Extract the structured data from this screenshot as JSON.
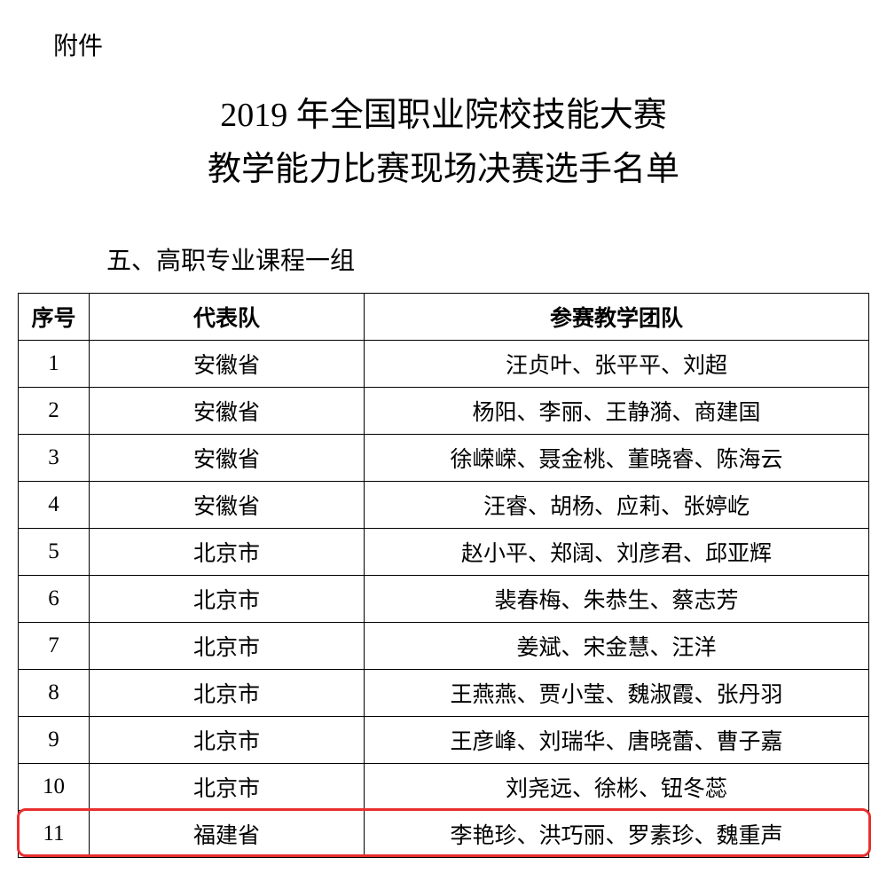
{
  "attachment_label": "附件",
  "title_line_1": "2019 年全国职业院校技能大赛",
  "title_line_2": "教学能力比赛现场决赛选手名单",
  "section_label": "五、高职专业课程一组",
  "columns": {
    "seq": "序号",
    "team": "代表队",
    "members": "参赛教学团队"
  },
  "col_widths": {
    "seq": 80,
    "team": 310
  },
  "rows": [
    {
      "seq": "1",
      "team": "安徽省",
      "members": "汪贞叶、张平平、刘超",
      "highlight": false
    },
    {
      "seq": "2",
      "team": "安徽省",
      "members": "杨阳、李丽、王静漪、商建国",
      "highlight": false
    },
    {
      "seq": "3",
      "team": "安徽省",
      "members": "徐嵘嵘、聂金桃、董晓睿、陈海云",
      "highlight": false
    },
    {
      "seq": "4",
      "team": "安徽省",
      "members": "汪睿、胡杨、应莉、张婷屹",
      "highlight": false
    },
    {
      "seq": "5",
      "team": "北京市",
      "members": "赵小平、郑阔、刘彦君、邱亚辉",
      "highlight": false
    },
    {
      "seq": "6",
      "team": "北京市",
      "members": "裴春梅、朱恭生、蔡志芳",
      "highlight": false
    },
    {
      "seq": "7",
      "team": "北京市",
      "members": "姜斌、宋金慧、汪洋",
      "highlight": false
    },
    {
      "seq": "8",
      "team": "北京市",
      "members": "王燕燕、贾小莹、魏淑霞、张丹羽",
      "highlight": false
    },
    {
      "seq": "9",
      "team": "北京市",
      "members": "王彦峰、刘瑞华、唐晓蕾、曹子嘉",
      "highlight": false
    },
    {
      "seq": "10",
      "team": "北京市",
      "members": "刘尧远、徐彬、钮冬蕊",
      "highlight": false
    },
    {
      "seq": "11",
      "team": "福建省",
      "members": "李艳珍、洪巧丽、罗素珍、魏重声",
      "highlight": true
    }
  ],
  "highlight_color": "#e92f2f",
  "text_color": "#000000",
  "background_color": "#ffffff",
  "border_color": "#000000",
  "fonts": {
    "body_family": "SimSun",
    "title_size_pt": 38,
    "section_size_pt": 28,
    "cell_size_pt": 25
  }
}
